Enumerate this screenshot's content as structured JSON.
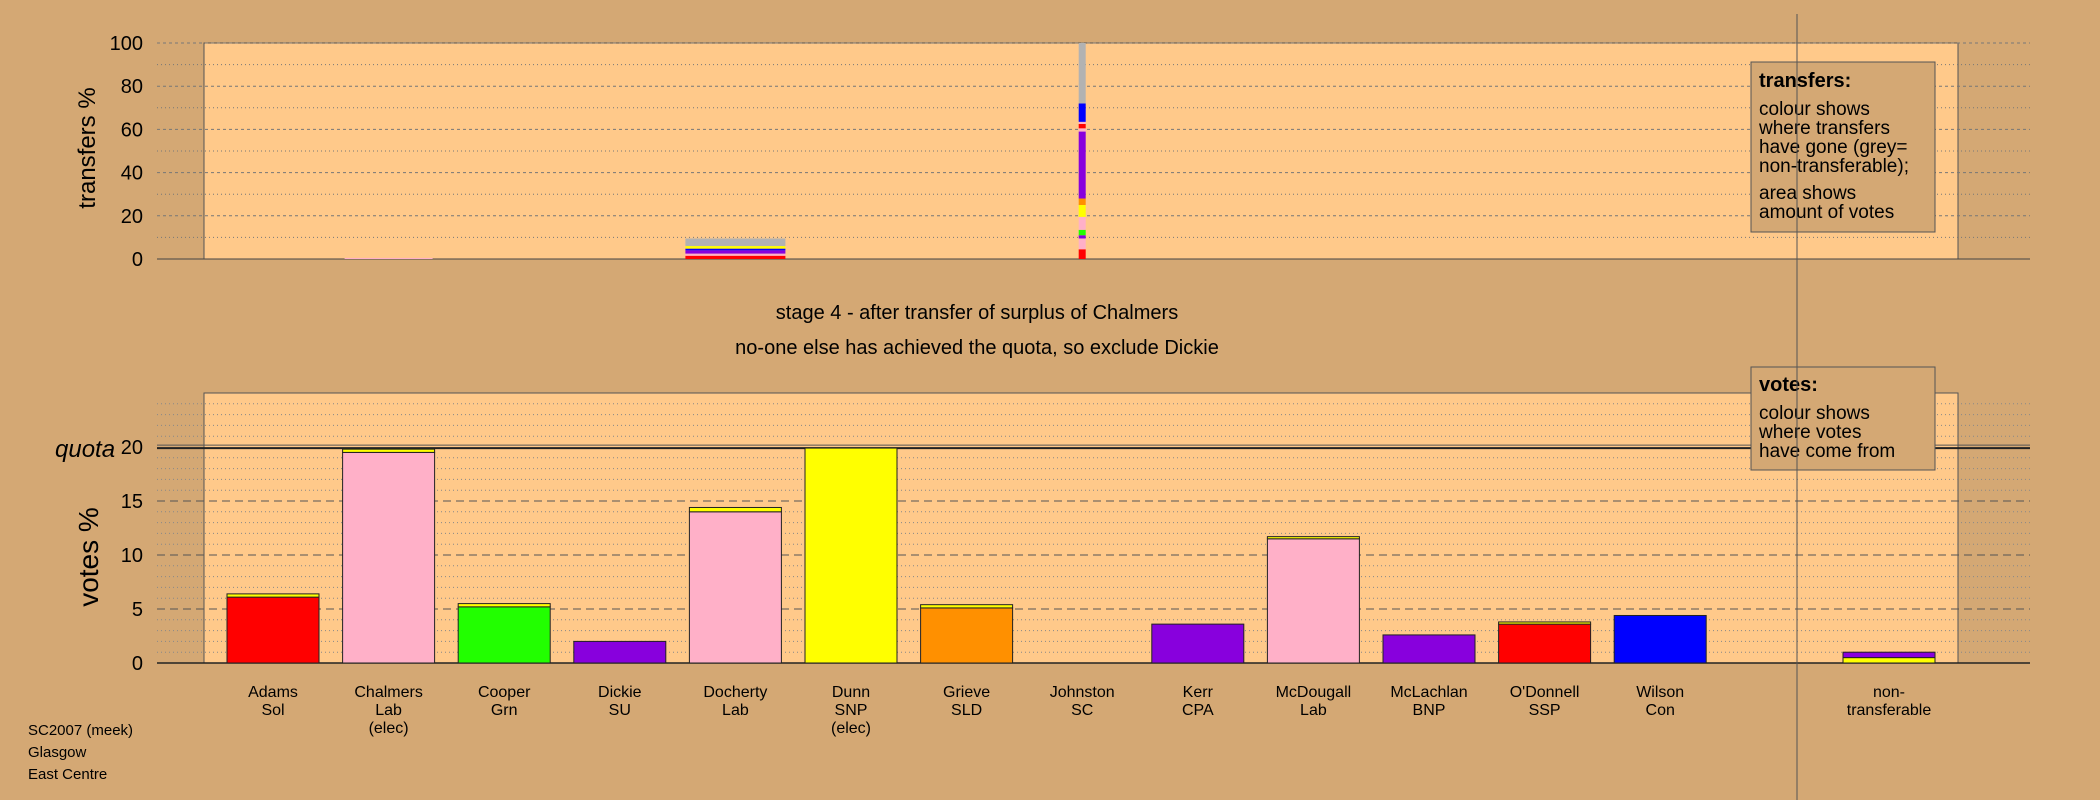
{
  "colors": {
    "background": "#d4a874",
    "panel": "#ffc98a",
    "legend_box": "#d4a874",
    "non_transferable": "#b2b2b2",
    "Sol": "#ff0000",
    "Lab": "#ffb0c8",
    "Grn": "#22ff00",
    "SU": "#8800dd",
    "SNP": "#ffff00",
    "SLD": "#ff9000",
    "SC": "#ffb0c8",
    "CPA": "#8800dd",
    "BNP": "#8800dd",
    "SSP": "#ff0000",
    "Con": "#0000ff"
  },
  "chart_data": [
    {
      "type": "bar",
      "name": "transfers",
      "ylabel": "transfers %",
      "ylim": [
        0,
        100
      ],
      "yticks": [
        0,
        20,
        40,
        60,
        80,
        100
      ],
      "grid": true,
      "categories": [
        "Adams Sol",
        "Chalmers Lab",
        "Cooper Grn",
        "Dickie SU",
        "Docherty Lab",
        "Dunn SNP",
        "Grieve SLD",
        "Johnston SC",
        "Kerr CPA",
        "McDougall Lab",
        "McLachlan BNP",
        "O'Donnell SSP",
        "Wilson Con"
      ],
      "bars": [
        {
          "category": "Chalmers Lab",
          "stack": [
            {
              "from": "Lab",
              "value": 0.5
            }
          ]
        },
        {
          "category": "Docherty Lab",
          "stack": [
            {
              "from": "SSP",
              "value": 1.5
            },
            {
              "from": "Lab",
              "value": 1.0
            },
            {
              "from": "SU",
              "value": 1.5
            },
            {
              "from": "Con",
              "value": 0.8
            },
            {
              "from": "SNP",
              "value": 1.2
            },
            {
              "from": "non_transferable",
              "value": 3.5
            }
          ]
        },
        {
          "category": "Johnston SC",
          "stack": [
            {
              "from": "Sol",
              "value": 4.5
            },
            {
              "from": "Lab",
              "value": 5
            },
            {
              "from": "CPA",
              "value": 1.5
            },
            {
              "from": "Grn",
              "value": 2.5
            },
            {
              "from": "Lab",
              "value": 6
            },
            {
              "from": "SNP",
              "value": 5.5
            },
            {
              "from": "SLD",
              "value": 3
            },
            {
              "from": "SU",
              "value": 31
            },
            {
              "from": "Lab",
              "value": 1.5
            },
            {
              "from": "SSP",
              "value": 2
            },
            {
              "from": "SC",
              "value": 1
            },
            {
              "from": "Con",
              "value": 8.5
            },
            {
              "from": "non_transferable",
              "value": 28
            }
          ]
        }
      ],
      "legend": {
        "placement": "top-right",
        "title": "transfers:",
        "lines1": [
          "colour shows",
          "where transfers",
          "have gone (grey=",
          "non-transferable);"
        ],
        "lines2": [
          "area shows",
          "amount of votes"
        ]
      }
    },
    {
      "type": "bar",
      "name": "votes",
      "ylabel": "votes %",
      "ylim": [
        0,
        25
      ],
      "yticks": [
        0,
        5,
        10,
        15,
        20
      ],
      "quota": 19.9,
      "quota_label": "quota",
      "grid": true,
      "bars": [
        {
          "label1": "Adams",
          "label2": "Sol",
          "label3": "",
          "party": "Sol",
          "value": 6.1,
          "extra": [
            {
              "from": "SNP",
              "value": 0.3
            }
          ]
        },
        {
          "label1": "Chalmers",
          "label2": "Lab",
          "label3": "(elec)",
          "party": "Lab",
          "value": 19.5,
          "extra": [
            {
              "from": "SNP",
              "value": 0.3
            }
          ]
        },
        {
          "label1": "Cooper",
          "label2": "Grn",
          "label3": "",
          "party": "Grn",
          "value": 5.2,
          "extra": [
            {
              "from": "SNP",
              "value": 0.3
            }
          ]
        },
        {
          "label1": "Dickie",
          "label2": "SU",
          "label3": "",
          "party": "SU",
          "value": 2.0,
          "extra": []
        },
        {
          "label1": "Docherty",
          "label2": "Lab",
          "label3": "",
          "party": "Lab",
          "value": 14.0,
          "extra": [
            {
              "from": "SNP",
              "value": 0.4
            }
          ]
        },
        {
          "label1": "Dunn",
          "label2": "SNP",
          "label3": "(elec)",
          "party": "SNP",
          "value": 19.9,
          "extra": []
        },
        {
          "label1": "Grieve",
          "label2": "SLD",
          "label3": "",
          "party": "SLD",
          "value": 5.1,
          "extra": [
            {
              "from": "SNP",
              "value": 0.3
            }
          ]
        },
        {
          "label1": "Johnston",
          "label2": "SC",
          "label3": "",
          "party": "SC",
          "value": 0,
          "extra": []
        },
        {
          "label1": "Kerr",
          "label2": "CPA",
          "label3": "",
          "party": "CPA",
          "value": 3.6,
          "extra": []
        },
        {
          "label1": "McDougall",
          "label2": "Lab",
          "label3": "",
          "party": "Lab",
          "value": 11.5,
          "extra": [
            {
              "from": "SNP",
              "value": 0.2
            }
          ]
        },
        {
          "label1": "McLachlan",
          "label2": "BNP",
          "label3": "",
          "party": "BNP",
          "value": 2.6,
          "extra": []
        },
        {
          "label1": "O'Donnell",
          "label2": "SSP",
          "label3": "",
          "party": "SSP",
          "value": 3.6,
          "extra": [
            {
              "from": "SNP",
              "value": 0.2
            }
          ]
        },
        {
          "label1": "Wilson",
          "label2": "Con",
          "label3": "",
          "party": "Con",
          "value": 4.4,
          "extra": []
        }
      ],
      "non_transferable": {
        "label1": "non-",
        "label2": "transferable",
        "stack": [
          {
            "from": "SNP",
            "value": 0.5
          },
          {
            "from": "SU",
            "value": 0.5
          }
        ]
      },
      "legend": {
        "placement": "top-right",
        "title": "votes:",
        "lines": [
          "colour shows",
          "where votes",
          "have come from"
        ]
      }
    }
  ],
  "stage_line1": "stage 4 - after transfer of surplus of Chalmers",
  "stage_line2": "no-one else has achieved the quota, so exclude Dickie",
  "footer": [
    "SC2007 (meek)",
    "Glasgow",
    "East Centre"
  ]
}
